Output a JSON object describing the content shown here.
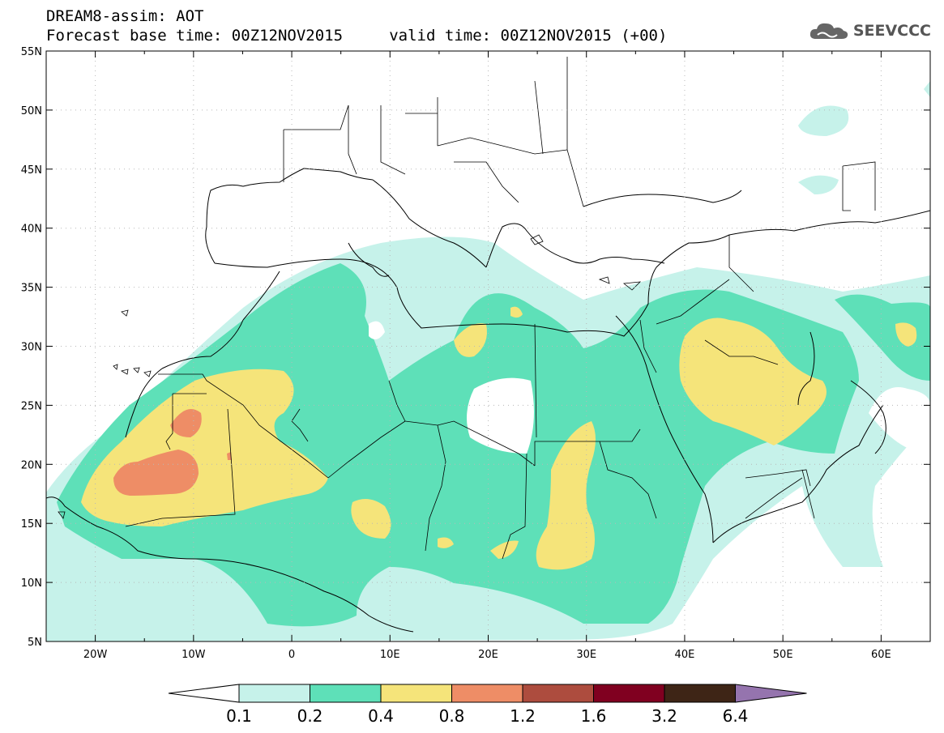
{
  "header": {
    "title_line1": "DREAM8-assim: AOT",
    "title_line2": "Forecast base time: 00Z12NOV2015     valid time: 00Z12NOV2015 (+00)"
  },
  "logo": {
    "text": "SEEVCCC",
    "icon": "cloud-icon"
  },
  "map": {
    "lat_labels": [
      "55N",
      "50N",
      "45N",
      "40N",
      "35N",
      "30N",
      "25N",
      "20N",
      "15N",
      "10N",
      "5N"
    ],
    "lon_labels": [
      "20W",
      "10W",
      "0",
      "10E",
      "20E",
      "30E",
      "40E",
      "50E",
      "60E"
    ],
    "lat_values": [
      55,
      50,
      45,
      40,
      35,
      30,
      25,
      20,
      15,
      10,
      5
    ],
    "lon_values": [
      -20,
      -10,
      0,
      10,
      20,
      30,
      40,
      50,
      60
    ],
    "extent": {
      "lon_min": -25,
      "lon_max": 65,
      "lat_min": 5,
      "lat_max": 55
    }
  },
  "colorbar": {
    "levels": [
      "0.1",
      "0.2",
      "0.4",
      "0.8",
      "1.2",
      "1.6",
      "3.2",
      "6.4"
    ],
    "colors": [
      "#ffffff",
      "#c6f2ea",
      "#5ee0b8",
      "#f5e47a",
      "#ee8d66",
      "#ad4c3e",
      "#800020",
      "#3e2516",
      "#9574ae"
    ]
  }
}
